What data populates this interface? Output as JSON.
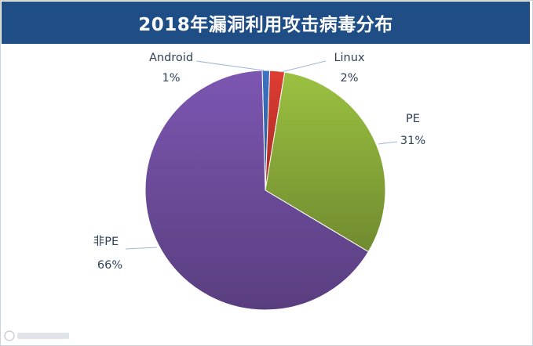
{
  "title": "2018年漏洞利用攻击病毒分布",
  "chart_data": {
    "type": "pie",
    "title": "2018年漏洞利用攻击病毒分布",
    "categories": [
      "Android",
      "Linux",
      "PE",
      "非PE"
    ],
    "values": [
      1,
      2,
      31,
      66
    ],
    "labels": [
      "1%",
      "2%",
      "31%",
      "66%"
    ],
    "colors": [
      "#3b74c4",
      "#e03c32",
      "#9bc141",
      "#7c56b1"
    ],
    "start_angle_deg": -1.5,
    "direction": "clockwise",
    "legend": "none",
    "data_labels": "outside with leader lines"
  }
}
